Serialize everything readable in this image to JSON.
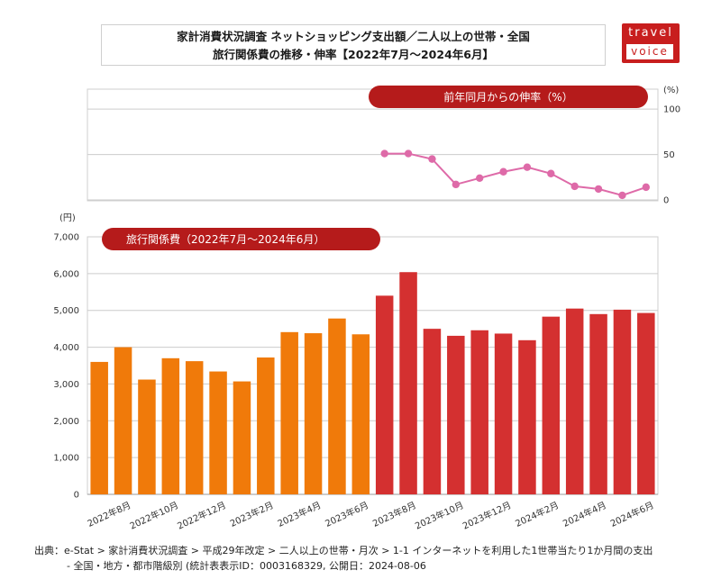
{
  "title": {
    "line1": "家計消費状況調査 ネットショッピング支出額／二人以上の世帯・全国",
    "line2": "旅行関係費の推移・伸率【2022年7月～2024年6月】"
  },
  "logo": {
    "top": "travel",
    "bottom": "voice"
  },
  "colors": {
    "bar_2022": "#f07a0a",
    "bar_2023": "#d43030",
    "line": "#de6aa8",
    "pill": "#b51b1b",
    "grid": "#cccccc"
  },
  "chart_data": [
    {
      "type": "line",
      "title": "前年同月からの伸率（%）",
      "unit_label": "(%)",
      "ylim": [
        0,
        120
      ],
      "yticks": [
        0,
        50,
        100
      ],
      "ytick_labels": [
        "0",
        "50",
        "100"
      ],
      "x_start_index": 12,
      "values": [
        51,
        51,
        45,
        17,
        24,
        31,
        36,
        29,
        15,
        12,
        5,
        14
      ]
    },
    {
      "type": "bar",
      "title": "旅行関係費（2022年7月～2024年6月）",
      "unit_label": "(円)",
      "ylim": [
        0,
        7000
      ],
      "yticks": [
        0,
        1000,
        2000,
        3000,
        4000,
        5000,
        6000,
        7000
      ],
      "ytick_labels": [
        "0",
        "1,000",
        "2,000",
        "3,000",
        "4,000",
        "5,000",
        "6,000",
        "7,000"
      ],
      "grid": true,
      "values": [
        3600,
        4000,
        3120,
        3700,
        3620,
        3340,
        3070,
        3720,
        4410,
        4380,
        4780,
        4350,
        5400,
        6040,
        4500,
        4310,
        4460,
        4370,
        4190,
        4830,
        5050,
        4900,
        5020,
        4930
      ],
      "xtick_labels": [
        "2022年8月",
        "2022年10月",
        "2022年12月",
        "2023年2月",
        "2023年4月",
        "2023年6月",
        "2023年8月",
        "2023年10月",
        "2023年12月",
        "2024年2月",
        "2024年4月",
        "2024年6月"
      ],
      "xtick_indices": [
        1,
        3,
        5,
        7,
        9,
        11,
        13,
        15,
        17,
        19,
        21,
        23
      ],
      "color_split_index": 12
    }
  ],
  "footer": {
    "line1": "出典：e-Stat > 家計消費状況調査 > 平成29年改定 > 二人以上の世帯・月次 > 1-1 インターネットを利用した1世帯当たり1か月間の支出",
    "line2": "- 全国・地方・都市階級別 (統計表表示ID：0003168329, 公開日：2024-08-06"
  }
}
